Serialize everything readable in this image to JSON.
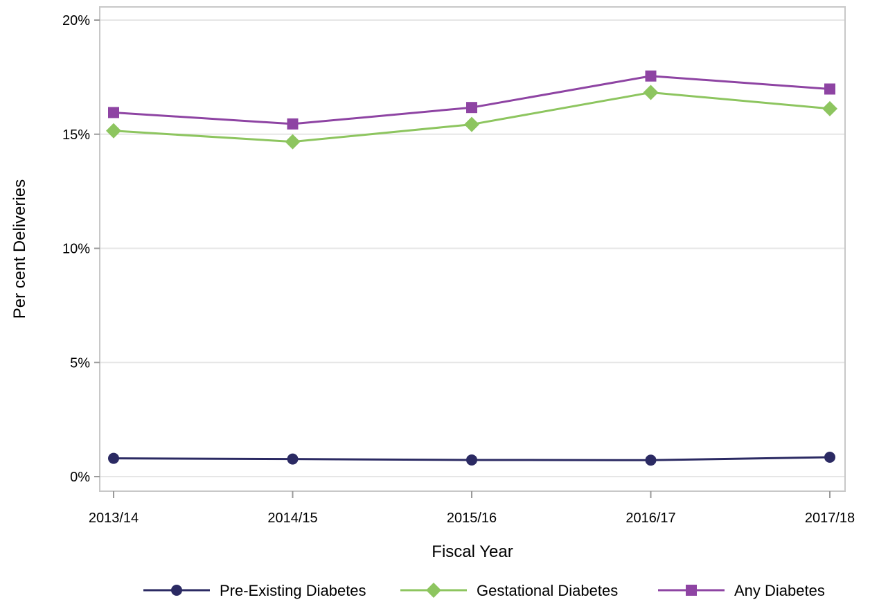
{
  "chart_data": {
    "type": "line",
    "title": "",
    "xlabel": "Fiscal Year",
    "ylabel": "Per cent Deliveries",
    "categories": [
      "2013/14",
      "2014/15",
      "2015/16",
      "2016/17",
      "2017/18"
    ],
    "ylim": [
      0,
      20
    ],
    "yticks": [
      0,
      5,
      10,
      15,
      20
    ],
    "ytick_labels": [
      "0%",
      "5%",
      "10%",
      "15%",
      "20%"
    ],
    "grid": "horizontal",
    "legend_position": "bottom",
    "series": [
      {
        "name": "Pre-Existing Diabetes",
        "marker": "circle",
        "color": "#2b2a63",
        "values": [
          0.8,
          0.77,
          0.73,
          0.72,
          0.85
        ]
      },
      {
        "name": "Gestational Diabetes",
        "marker": "diamond",
        "color": "#8dc55f",
        "values": [
          15.15,
          14.67,
          15.43,
          16.83,
          16.12
        ]
      },
      {
        "name": "Any Diabetes",
        "marker": "square",
        "color": "#8e44a3",
        "values": [
          15.95,
          15.45,
          16.17,
          17.55,
          16.98
        ]
      }
    ]
  }
}
